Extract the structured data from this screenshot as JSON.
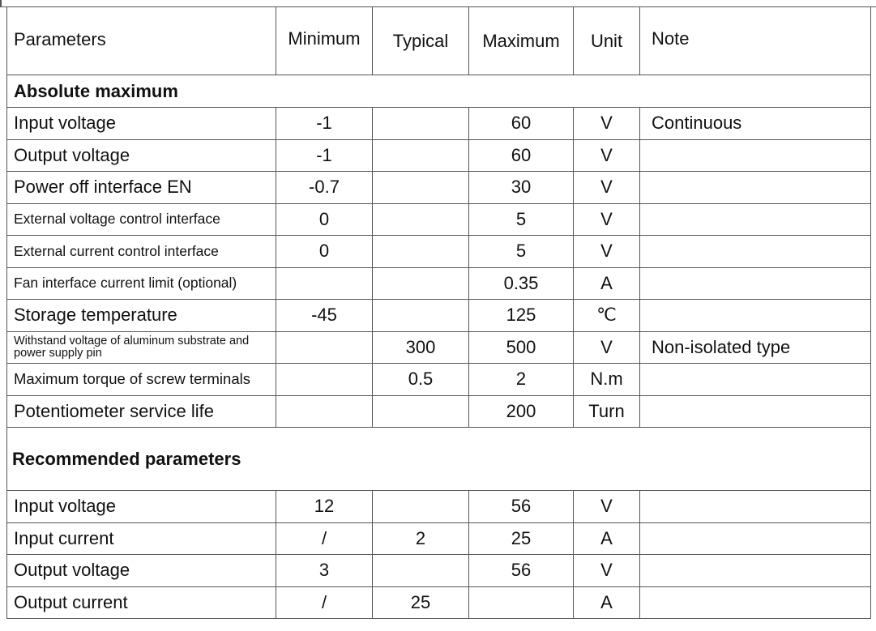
{
  "table": {
    "headers": [
      "Parameters",
      "Minimum",
      "Typical",
      "Maximum",
      "Unit",
      "Note"
    ],
    "sections": [
      {
        "title": "Absolute maximum",
        "rows": [
          {
            "param": "Input voltage",
            "min": "-1",
            "typ": "",
            "max": "60",
            "unit": "V",
            "note": "Continuous"
          },
          {
            "param": "Output voltage",
            "min": "-1",
            "typ": "",
            "max": "60",
            "unit": "V",
            "note": ""
          },
          {
            "param": "Power off interface EN",
            "min": "-0.7",
            "typ": "",
            "max": "30",
            "unit": "V",
            "note": ""
          },
          {
            "param": "External voltage control interface",
            "min": "0",
            "typ": "",
            "max": "5",
            "unit": "V",
            "note": ""
          },
          {
            "param": "External current control interface",
            "min": "0",
            "typ": "",
            "max": "5",
            "unit": "V",
            "note": ""
          },
          {
            "param": "Fan interface current limit (optional)",
            "min": "",
            "typ": "",
            "max": "0.35",
            "unit": "A",
            "note": ""
          },
          {
            "param": "Storage temperature",
            "min": "-45",
            "typ": "",
            "max": "125",
            "unit": "℃",
            "note": ""
          },
          {
            "param": "Withstand voltage of aluminum substrate and power supply pin",
            "min": "",
            "typ": "300",
            "max": "500",
            "unit": "V",
            "note": "Non-isolated type"
          },
          {
            "param": "Maximum torque of screw terminals",
            "min": "",
            "typ": "0.5",
            "max": "2",
            "unit": "N.m",
            "note": ""
          },
          {
            "param": "Potentiometer service life",
            "min": "",
            "typ": "",
            "max": "200",
            "unit": "Turn",
            "note": ""
          }
        ]
      },
      {
        "title": "Recommended parameters",
        "rows": [
          {
            "param": "Input voltage",
            "min": "12",
            "typ": "",
            "max": "56",
            "unit": "V",
            "note": ""
          },
          {
            "param": "Input current",
            "min": "/",
            "typ": "2",
            "max": "25",
            "unit": "A",
            "note": ""
          },
          {
            "param": "Output voltage",
            "min": "3",
            "typ": "",
            "max": "56",
            "unit": "V",
            "note": ""
          },
          {
            "param": "Output current",
            "min": "/",
            "typ": "25",
            "max": "",
            "unit": "A",
            "note": ""
          }
        ]
      }
    ]
  }
}
